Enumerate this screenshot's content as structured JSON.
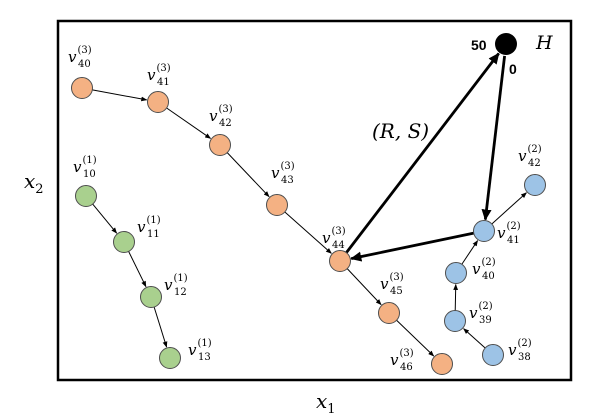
{
  "axes": {
    "x_label": "x",
    "x_label_sub": "1",
    "y_label": "x",
    "y_label_sub": "2"
  },
  "hub": {
    "label": "H",
    "in_value": "50",
    "out_value": "0",
    "edge_label": "(R, S)"
  },
  "groups": [
    {
      "id": "g1",
      "color": "#a9d08e",
      "nodes": [
        {
          "id": "v10",
          "base": "v",
          "sub": "10",
          "sup": "(1)"
        },
        {
          "id": "v11",
          "base": "v",
          "sub": "11",
          "sup": "(1)"
        },
        {
          "id": "v12",
          "base": "v",
          "sub": "12",
          "sup": "(1)"
        },
        {
          "id": "v13",
          "base": "v",
          "sub": "13",
          "sup": "(1)"
        }
      ]
    },
    {
      "id": "g3",
      "color": "#f4b183",
      "nodes": [
        {
          "id": "v40",
          "base": "v",
          "sub": "40",
          "sup": "(3)"
        },
        {
          "id": "v41",
          "base": "v",
          "sub": "41",
          "sup": "(3)"
        },
        {
          "id": "v42",
          "base": "v",
          "sub": "42",
          "sup": "(3)"
        },
        {
          "id": "v43",
          "base": "v",
          "sub": "43",
          "sup": "(3)"
        },
        {
          "id": "v44",
          "base": "v",
          "sub": "44",
          "sup": "(3)"
        },
        {
          "id": "v45",
          "base": "v",
          "sub": "45",
          "sup": "(3)"
        },
        {
          "id": "v46",
          "base": "v",
          "sub": "46",
          "sup": "(3)"
        }
      ]
    },
    {
      "id": "g2",
      "color": "#9dc3e6",
      "nodes": [
        {
          "id": "v38",
          "base": "v",
          "sub": "38",
          "sup": "(2)"
        },
        {
          "id": "v39",
          "base": "v",
          "sub": "39",
          "sup": "(2)"
        },
        {
          "id": "v40b",
          "base": "v",
          "sub": "40",
          "sup": "(2)"
        },
        {
          "id": "v41b",
          "base": "v",
          "sub": "41",
          "sup": "(2)"
        },
        {
          "id": "v42b",
          "base": "v",
          "sub": "42",
          "sup": "(2)"
        }
      ]
    }
  ],
  "edges": [
    {
      "from": "v10",
      "to": "v11"
    },
    {
      "from": "v11",
      "to": "v12"
    },
    {
      "from": "v12",
      "to": "v13"
    },
    {
      "from": "v40",
      "to": "v41"
    },
    {
      "from": "v41",
      "to": "v42"
    },
    {
      "from": "v42",
      "to": "v43"
    },
    {
      "from": "v43",
      "to": "v44"
    },
    {
      "from": "v44",
      "to": "v45"
    },
    {
      "from": "v45",
      "to": "v46"
    },
    {
      "from": "v38",
      "to": "v39"
    },
    {
      "from": "v39",
      "to": "v40b"
    },
    {
      "from": "v40b",
      "to": "v41b"
    },
    {
      "from": "v41b",
      "to": "v42b"
    }
  ],
  "hub_edges": [
    {
      "from": "v44",
      "to": "H"
    },
    {
      "from": "H",
      "to": "v41b"
    },
    {
      "from": "v41b",
      "to": "v44"
    }
  ]
}
